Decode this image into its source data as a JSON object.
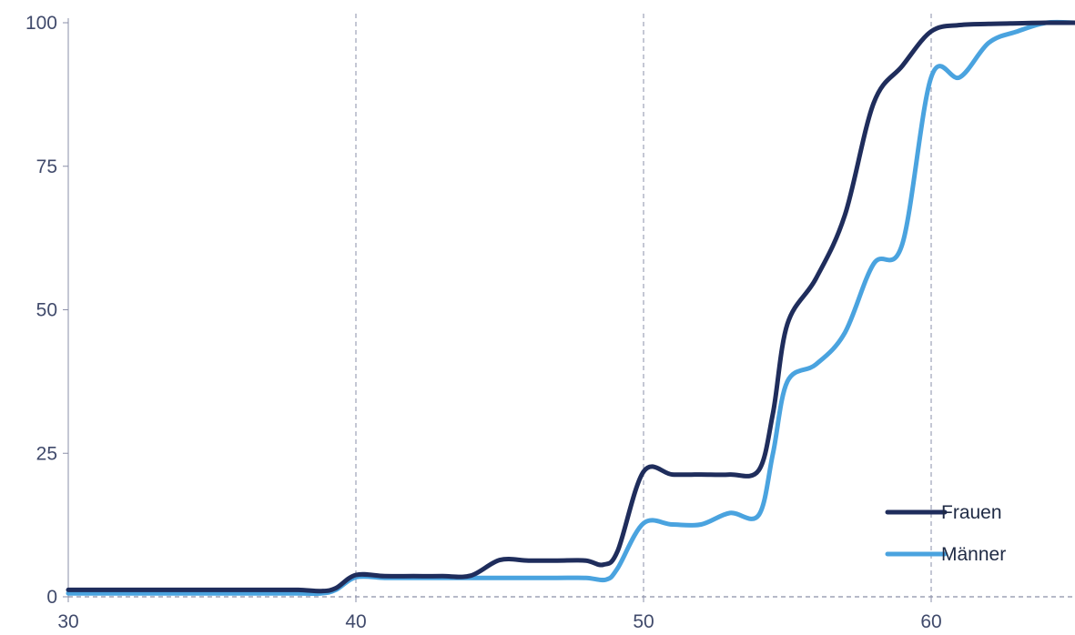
{
  "chart_data": {
    "type": "line",
    "title": "",
    "xlabel": "",
    "ylabel": "",
    "xlim": [
      30,
      65
    ],
    "ylim": [
      0,
      100
    ],
    "x_ticks": [
      30,
      40,
      50,
      60
    ],
    "y_ticks": [
      0,
      25,
      50,
      75,
      100
    ],
    "x_tick_labels": [
      "30",
      "40",
      "50",
      "60"
    ],
    "y_tick_labels": [
      "0",
      "25",
      "50",
      "75",
      "100"
    ],
    "grid": "vertical dashed at x ticks",
    "legend_position": "bottom-right",
    "series": [
      {
        "name": "Frauen",
        "color": "#1f2d5c",
        "points": [
          [
            30,
            1.2
          ],
          [
            31,
            1.2
          ],
          [
            32,
            1.2
          ],
          [
            33,
            1.2
          ],
          [
            34,
            1.2
          ],
          [
            35,
            1.2
          ],
          [
            36,
            1.2
          ],
          [
            37,
            1.2
          ],
          [
            38,
            1.2
          ],
          [
            38.8,
            1.0
          ],
          [
            39.3,
            1.5
          ],
          [
            40,
            3.8
          ],
          [
            41,
            3.6
          ],
          [
            42,
            3.6
          ],
          [
            43,
            3.6
          ],
          [
            44,
            3.7
          ],
          [
            45,
            6.4
          ],
          [
            46,
            6.3
          ],
          [
            47,
            6.3
          ],
          [
            48,
            6.3
          ],
          [
            48.6,
            5.6
          ],
          [
            49.1,
            8.0
          ],
          [
            50,
            21.8
          ],
          [
            51,
            21.3
          ],
          [
            52,
            21.3
          ],
          [
            53,
            21.3
          ],
          [
            54,
            22.0
          ],
          [
            54.5,
            32
          ],
          [
            55,
            47.5
          ],
          [
            56,
            55.5
          ],
          [
            57,
            66.5
          ],
          [
            58,
            86.0
          ],
          [
            59,
            92.5
          ],
          [
            60,
            98.5
          ],
          [
            61,
            99.6
          ],
          [
            62,
            99.8
          ],
          [
            63,
            99.9
          ],
          [
            64,
            100
          ],
          [
            65,
            100
          ]
        ]
      },
      {
        "name": "Männer",
        "color": "#4aa3df",
        "points": [
          [
            30,
            0.6
          ],
          [
            31,
            0.6
          ],
          [
            32,
            0.6
          ],
          [
            33,
            0.6
          ],
          [
            34,
            0.6
          ],
          [
            35,
            0.6
          ],
          [
            36,
            0.6
          ],
          [
            37,
            0.6
          ],
          [
            38,
            0.6
          ],
          [
            38.8,
            0.6
          ],
          [
            39.3,
            1.2
          ],
          [
            40,
            3.4
          ],
          [
            41,
            3.3
          ],
          [
            42,
            3.3
          ],
          [
            43,
            3.3
          ],
          [
            44,
            3.3
          ],
          [
            45,
            3.3
          ],
          [
            46,
            3.3
          ],
          [
            47,
            3.3
          ],
          [
            48,
            3.3
          ],
          [
            48.7,
            3.0
          ],
          [
            49.1,
            5.0
          ],
          [
            50,
            12.8
          ],
          [
            51,
            12.6
          ],
          [
            52,
            12.6
          ],
          [
            53,
            14.6
          ],
          [
            54,
            14.2
          ],
          [
            54.5,
            25
          ],
          [
            55,
            37.5
          ],
          [
            56,
            40.5
          ],
          [
            57,
            46.0
          ],
          [
            58,
            58.0
          ],
          [
            59,
            61.5
          ],
          [
            60,
            90.5
          ],
          [
            61,
            90.5
          ],
          [
            62,
            96.5
          ],
          [
            63,
            98.5
          ],
          [
            64,
            100
          ],
          [
            65,
            100
          ]
        ]
      }
    ]
  }
}
